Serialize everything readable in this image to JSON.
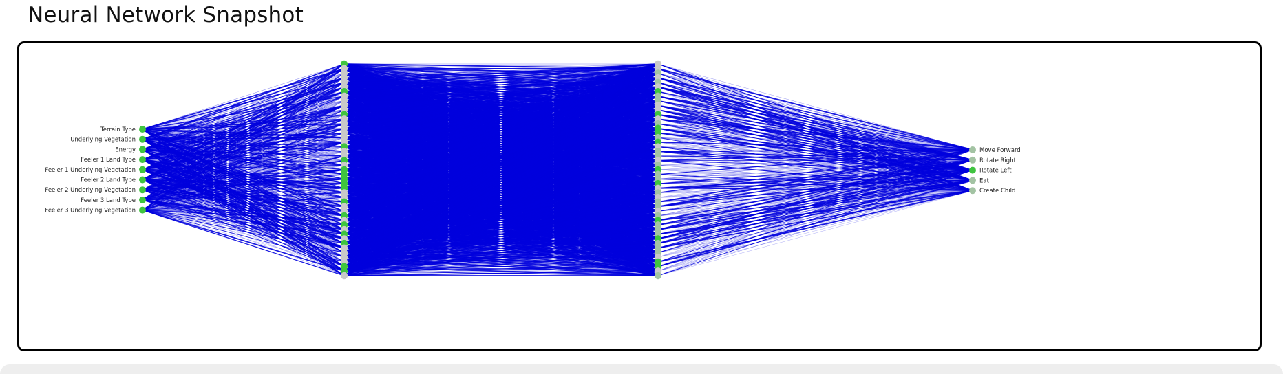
{
  "page": {
    "title": "Neural Network Snapshot"
  },
  "network": {
    "colors": {
      "active_node": "#3fc43f",
      "inactive_node": "#c9c9c9",
      "partial_node": "#a3c3a3",
      "connection": "#0000dd"
    },
    "inputs": [
      {
        "label": "Terrain Type",
        "state": "active"
      },
      {
        "label": "Underlying Vegetation",
        "state": "active"
      },
      {
        "label": "Energy",
        "state": "active"
      },
      {
        "label": "Feeler 1 Land Type",
        "state": "active"
      },
      {
        "label": "Feeler 1 Underlying Vegetation",
        "state": "active"
      },
      {
        "label": "Feeler 2 Land Type",
        "state": "active"
      },
      {
        "label": "Feeler 2 Underlying Vegetation",
        "state": "active"
      },
      {
        "label": "Feeler 3 Land Type",
        "state": "active"
      },
      {
        "label": "Feeler 3 Underlying Vegetation",
        "state": "active"
      }
    ],
    "hidden_layers": [
      {
        "states": [
          "active",
          "inactive",
          "inactive",
          "inactive",
          "inactive",
          "inactive",
          "active",
          "inactive",
          "inactive",
          "inactive",
          "inactive",
          "active",
          "inactive",
          "inactive",
          "inactive",
          "inactive",
          "inactive",
          "inactive",
          "active",
          "inactive",
          "inactive",
          "active",
          "inactive",
          "active",
          "active",
          "active",
          "active",
          "active",
          "inactive",
          "inactive",
          "active",
          "inactive",
          "inactive",
          "active",
          "inactive",
          "active",
          "inactive",
          "active",
          "inactive",
          "active",
          "inactive",
          "inactive",
          "inactive",
          "inactive",
          "active",
          "active",
          "inactive"
        ]
      },
      {
        "states": [
          "inactive",
          "inactive",
          "partial",
          "inactive",
          "partial",
          "inactive",
          "active",
          "partial",
          "partial",
          "inactive",
          "inactive",
          "active",
          "inactive",
          "partial",
          "active",
          "active",
          "partial",
          "active",
          "inactive",
          "partial",
          "partial",
          "inactive",
          "partial",
          "active",
          "partial",
          "partial",
          "active",
          "inactive",
          "partial",
          "inactive",
          "partial",
          "partial",
          "inactive",
          "partial",
          "active",
          "partial",
          "partial",
          "partial",
          "active",
          "partial",
          "partial",
          "partial",
          "inactive",
          "active",
          "active",
          "inactive",
          "partial"
        ]
      }
    ],
    "outputs": [
      {
        "label": "Move Forward",
        "state": "partial"
      },
      {
        "label": "Rotate Right",
        "state": "partial"
      },
      {
        "label": "Rotate Left",
        "state": "active"
      },
      {
        "label": "Eat",
        "state": "partial"
      },
      {
        "label": "Create Child",
        "state": "partial"
      }
    ]
  }
}
